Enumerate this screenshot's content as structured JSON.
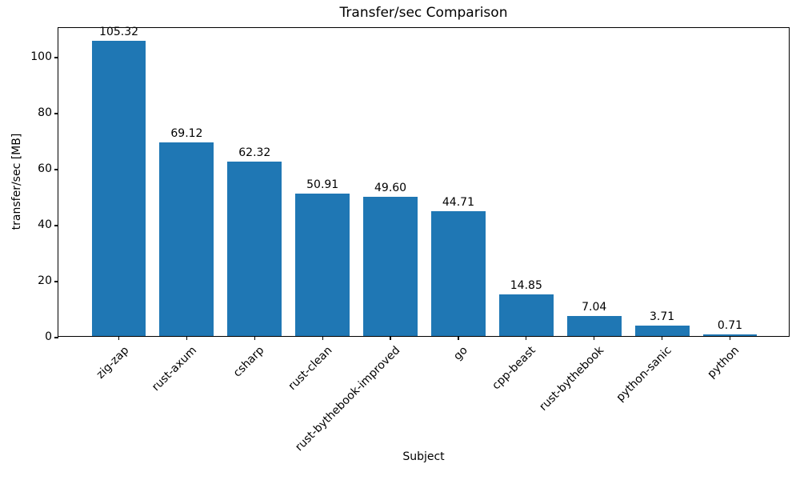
{
  "chart_data": {
    "type": "bar",
    "title": "Transfer/sec Comparison",
    "xlabel": "Subject",
    "ylabel": "transfer/sec [MB]",
    "categories": [
      "zig-zap",
      "rust-axum",
      "csharp",
      "rust-clean",
      "rust-bythebook-improved",
      "go",
      "cpp-beast",
      "rust-bythebook",
      "python-sanic",
      "python"
    ],
    "values": [
      105.32,
      69.12,
      62.32,
      50.91,
      49.6,
      44.71,
      14.85,
      7.04,
      3.71,
      0.71
    ],
    "value_labels": [
      "105.32",
      "69.12",
      "62.32",
      "50.91",
      "49.60",
      "44.71",
      "14.85",
      "7.04",
      "3.71",
      "0.71"
    ],
    "yticks": [
      "0",
      "20",
      "40",
      "60",
      "80",
      "100"
    ],
    "ytick_values": [
      0,
      20,
      40,
      60,
      80,
      100
    ],
    "ylim": [
      0,
      110.59
    ],
    "bar_color": "#1f77b4",
    "grid": false,
    "legend_position": "none",
    "xtick_rotation_deg": 45
  }
}
